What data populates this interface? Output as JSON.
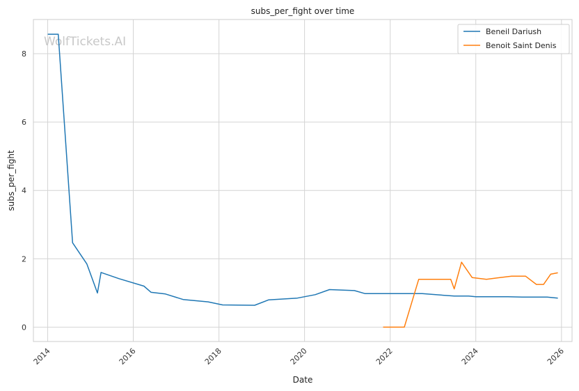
{
  "chart_data": {
    "type": "line",
    "title": "subs_per_fight over time",
    "xlabel": "Date",
    "ylabel": "subs_per_fight",
    "watermark": "WolfTickets.AI",
    "xlim": [
      "2013-09-01",
      "2026-04-01"
    ],
    "ylim": [
      -0.42,
      9.0
    ],
    "xticks": [
      "2014",
      "2016",
      "2018",
      "2020",
      "2022",
      "2024",
      "2026"
    ],
    "yticks": [
      0,
      2,
      4,
      6,
      8
    ],
    "grid": true,
    "legend_position": "top-right",
    "series": [
      {
        "name": "Beneil Dariush",
        "color": "#1f77b4",
        "points": [
          [
            "2014-01-01",
            8.57
          ],
          [
            "2014-04-01",
            8.57
          ],
          [
            "2014-08-01",
            2.47
          ],
          [
            "2014-12-01",
            1.85
          ],
          [
            "2015-03-01",
            1.0
          ],
          [
            "2015-04-01",
            1.6
          ],
          [
            "2015-09-01",
            1.42
          ],
          [
            "2016-04-01",
            1.2
          ],
          [
            "2016-06-01",
            1.02
          ],
          [
            "2016-10-01",
            0.97
          ],
          [
            "2017-03-01",
            0.81
          ],
          [
            "2017-10-01",
            0.74
          ],
          [
            "2018-02-01",
            0.65
          ],
          [
            "2018-11-01",
            0.64
          ],
          [
            "2019-03-01",
            0.8
          ],
          [
            "2019-11-01",
            0.85
          ],
          [
            "2020-04-01",
            0.95
          ],
          [
            "2020-08-01",
            1.1
          ],
          [
            "2021-03-01",
            1.07
          ],
          [
            "2021-06-01",
            0.98
          ],
          [
            "2022-10-01",
            0.98
          ],
          [
            "2023-07-01",
            0.91
          ],
          [
            "2023-11-01",
            0.91
          ],
          [
            "2024-01-01",
            0.89
          ],
          [
            "2024-10-01",
            0.89
          ],
          [
            "2025-02-01",
            0.88
          ],
          [
            "2025-09-01",
            0.88
          ],
          [
            "2025-12-01",
            0.85
          ]
        ]
      },
      {
        "name": "Benoit Saint Denis",
        "color": "#ff7f0e",
        "points": [
          [
            "2021-11-01",
            0.0
          ],
          [
            "2022-05-01",
            0.0
          ],
          [
            "2022-09-01",
            1.4
          ],
          [
            "2023-06-01",
            1.4
          ],
          [
            "2023-07-01",
            1.12
          ],
          [
            "2023-09-01",
            1.9
          ],
          [
            "2023-12-01",
            1.45
          ],
          [
            "2024-04-01",
            1.4
          ],
          [
            "2024-07-01",
            1.44
          ],
          [
            "2024-11-01",
            1.49
          ],
          [
            "2025-03-01",
            1.49
          ],
          [
            "2025-06-01",
            1.25
          ],
          [
            "2025-08-01",
            1.25
          ],
          [
            "2025-10-01",
            1.55
          ],
          [
            "2025-12-01",
            1.59
          ]
        ]
      }
    ]
  }
}
